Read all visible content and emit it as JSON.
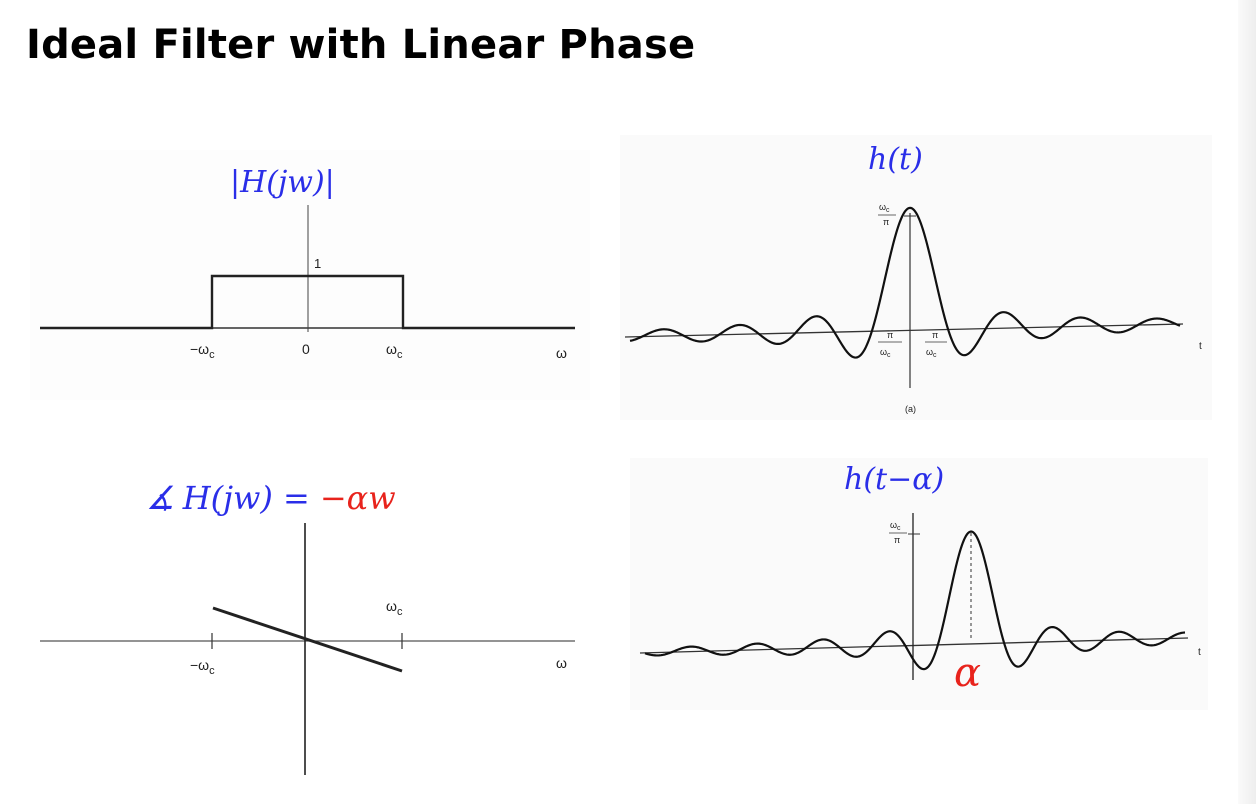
{
  "slide": {
    "title": "Ideal Filter with Linear Phase"
  },
  "magnitude": {
    "label": "|H(jw)|",
    "one_label": "1",
    "neg_wc": "−ω",
    "wc": "ω",
    "wc_sub": "c",
    "zero": "0",
    "omega": "ω"
  },
  "phase": {
    "symbol": "∡",
    "lhs": "H(jw) =",
    "rhs": "−αw",
    "wc": "ω",
    "wc_sub": "c",
    "neg_wc": "−ω",
    "neg_wc_sub": "c",
    "omega": "ω"
  },
  "impulse": {
    "label": "h(t)",
    "peak_num": "ω",
    "peak_sub": "c",
    "peak_den": "π",
    "left_num": "π",
    "left_den": "ω",
    "left_sub": "c",
    "right_num": "π",
    "right_den": "ω",
    "right_sub": "c",
    "t": "t",
    "caption": "(a)"
  },
  "shifted": {
    "label": "h(t−α)",
    "peak_num": "ω",
    "peak_sub": "c",
    "peak_den": "π",
    "alpha": "α",
    "t": "t"
  },
  "colors": {
    "blue": "#2a2ee8",
    "red": "#e8231c",
    "ink": "#111111"
  }
}
